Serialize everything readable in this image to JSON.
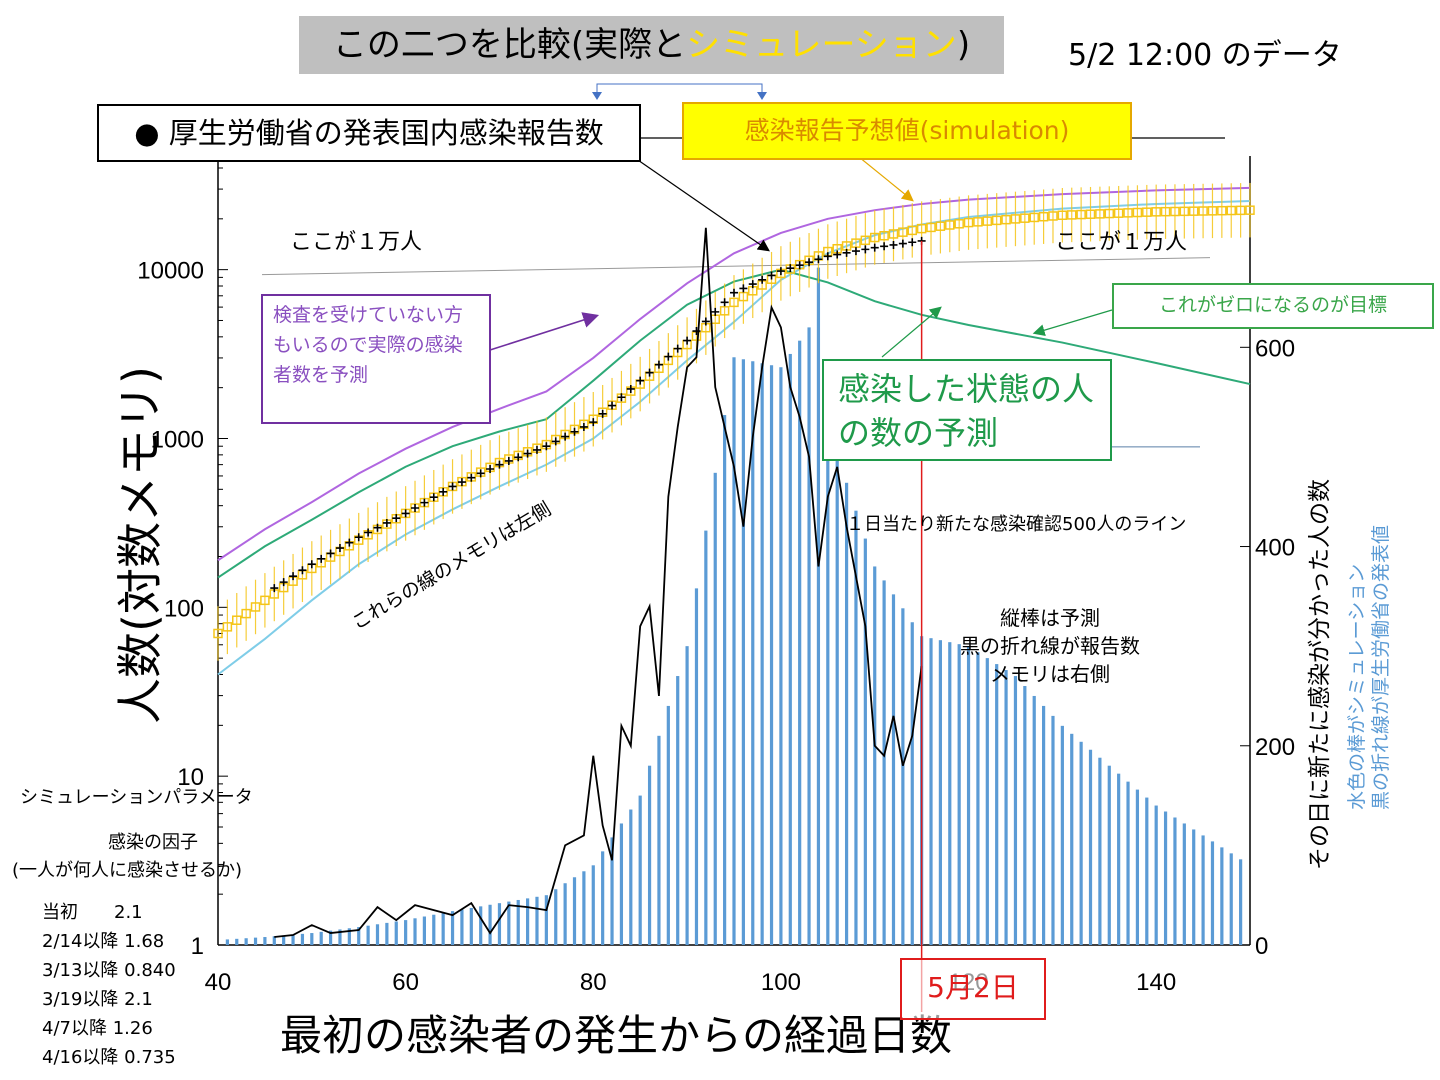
{
  "header": {
    "title_prefix": "この二つを比較(実際と",
    "title_highlight": "シミュレーション",
    "title_suffix": ")",
    "date_label": "5/2 12:00 のデータ"
  },
  "annotations": {
    "mhlw_box": "● 厚生労働省の発表国内感染報告数",
    "sim_box": "感染報告予想値(simulation)",
    "ten_thousand_left": "ここが１万人",
    "ten_thousand_right": "ここが１万人",
    "untested": "検査を受けていない方もいるので実際の感染者数を予測",
    "infected_state": "感染した状態の人の数の予測",
    "goal": "これがゼロになるのが目標",
    "left_scale_note": "これらの線のメモリは左側",
    "line_500": "１日当たり新たな感染確認500人のライン",
    "bars_note_1": "縦棒は予測",
    "bars_note_2": "黒の折れ線が報告数",
    "bars_note_3": "メモリは右側",
    "legend_right_1": "水色の棒がシミュレーション",
    "legend_right_2": "黒の折れ線が厚生労働省の発表値",
    "may2": "5月2日"
  },
  "params": {
    "title": "シミュレーションパラメータ",
    "factor_title": "感染の因子",
    "factor_desc": "(一人が何人に感染させるか)",
    "rows": [
      "当初　　2.1",
      "2/14以降 1.68",
      "3/13以降 0.840",
      "3/19以降  2.1",
      "4/7以降  1.26",
      "4/16以降 0.735"
    ]
  },
  "colors": {
    "bars": "#5b9bd5",
    "report_line": "#000000",
    "sim_marker": "#f5c518",
    "purple_line": "#b066e0",
    "green_line": "#2eaa78",
    "cyan_line": "#7fcde8",
    "red_line": "#e01c1c"
  },
  "chart_data": {
    "type": "line",
    "xlabel": "最初の感染者の発生からの経過日数",
    "ylabel_left": "人数(対数メモリ)",
    "ylabel_right": "その日に新たに感染が分かった人の数",
    "x_ticks": [
      "40",
      "60",
      "80",
      "100",
      "120",
      "140"
    ],
    "y_left_ticks": [
      "1",
      "10",
      "100",
      "1000",
      "10000"
    ],
    "y_right_ticks": [
      "0",
      "200",
      "400",
      "600"
    ],
    "xlim": [
      40,
      150
    ],
    "ylim_left_log": [
      1,
      40000
    ],
    "ylim_right": [
      0,
      780
    ],
    "left_scale": "log",
    "vertical_marker_x": 115,
    "series_left": [
      {
        "name": "厚生労働省の発表国内感染報告数",
        "x": [
          46,
          50,
          55,
          60,
          65,
          70,
          75,
          80,
          85,
          90,
          95,
          100,
          105,
          110,
          115
        ],
        "y": [
          130,
          180,
          260,
          360,
          520,
          700,
          900,
          1250,
          2200,
          3800,
          7300,
          9800,
          12000,
          13500,
          14800
        ]
      },
      {
        "name": "感染報告予想値(simulation)",
        "x": [
          40,
          45,
          50,
          55,
          60,
          65,
          70,
          75,
          80,
          85,
          90,
          95,
          100,
          105,
          110,
          115,
          120,
          130,
          140,
          150
        ],
        "y": [
          70,
          110,
          170,
          250,
          360,
          520,
          720,
          920,
          1300,
          2100,
          3600,
          6400,
          9500,
          12800,
          15500,
          17500,
          19000,
          21000,
          22000,
          22500
        ]
      },
      {
        "name": "",
        "x": [
          40,
          45,
          50,
          55,
          60,
          65,
          70,
          75,
          80,
          85,
          90,
          95,
          100,
          105,
          110,
          115,
          120,
          130,
          140,
          150
        ],
        "y": [
          190,
          290,
          420,
          620,
          870,
          1170,
          1500,
          1900,
          3000,
          5100,
          8300,
          12500,
          16500,
          20000,
          22500,
          24500,
          26000,
          28000,
          29500,
          30500
        ]
      },
      {
        "name": "",
        "x": [
          40,
          45,
          50,
          55,
          60,
          65,
          70,
          75,
          80,
          85,
          90,
          95,
          100,
          105,
          110,
          115,
          120,
          130,
          140,
          150
        ],
        "y": [
          150,
          230,
          330,
          480,
          680,
          900,
          1100,
          1300,
          2200,
          3800,
          6200,
          8500,
          10000,
          8400,
          6500,
          5400,
          4700,
          3700,
          2800,
          2100
        ]
      },
      {
        "name": "",
        "x": [
          40,
          45,
          50,
          55,
          60,
          65,
          70,
          75,
          80,
          85,
          90,
          95,
          100,
          105,
          110,
          115,
          120,
          130,
          140,
          150
        ],
        "y": [
          40,
          65,
          110,
          180,
          270,
          380,
          520,
          700,
          1000,
          1650,
          2900,
          4900,
          8700,
          12500,
          16000,
          18500,
          20500,
          23000,
          24500,
          25500
        ]
      }
    ],
    "series_right": [
      {
        "name": "水色の棒がシミュレーション",
        "type": "bar",
        "x": [
          40,
          45,
          50,
          55,
          60,
          65,
          70,
          75,
          80,
          85,
          90,
          95,
          100,
          103,
          104,
          105,
          110,
          115,
          120,
          125,
          130,
          135,
          140,
          145,
          150
        ],
        "y": [
          5,
          8,
          12,
          18,
          25,
          34,
          42,
          50,
          80,
          150,
          300,
          590,
          580,
          620,
          680,
          520,
          380,
          310,
          300,
          270,
          220,
          180,
          140,
          110,
          80
        ]
      },
      {
        "name": "黒の折れ線が厚生労働省の発表値",
        "type": "line",
        "x": [
          46,
          48,
          50,
          52,
          55,
          57,
          59,
          61,
          63,
          65,
          67,
          69,
          71,
          73,
          75,
          77,
          79,
          80,
          81,
          82,
          83,
          84,
          85,
          86,
          87,
          88,
          89,
          90,
          91,
          92,
          93,
          94,
          95,
          96,
          97,
          98,
          99,
          100,
          101,
          102,
          103,
          104,
          105,
          106,
          107,
          108,
          109,
          110,
          111,
          112,
          113,
          114,
          115
        ],
        "y": [
          8,
          10,
          20,
          12,
          15,
          38,
          25,
          40,
          35,
          30,
          42,
          12,
          40,
          38,
          35,
          100,
          110,
          190,
          120,
          85,
          220,
          200,
          320,
          340,
          250,
          450,
          520,
          580,
          590,
          720,
          560,
          520,
          480,
          420,
          510,
          580,
          640,
          620,
          560,
          530,
          490,
          380,
          450,
          480,
          420,
          370,
          320,
          200,
          190,
          230,
          180,
          210,
          280
        ]
      }
    ]
  }
}
